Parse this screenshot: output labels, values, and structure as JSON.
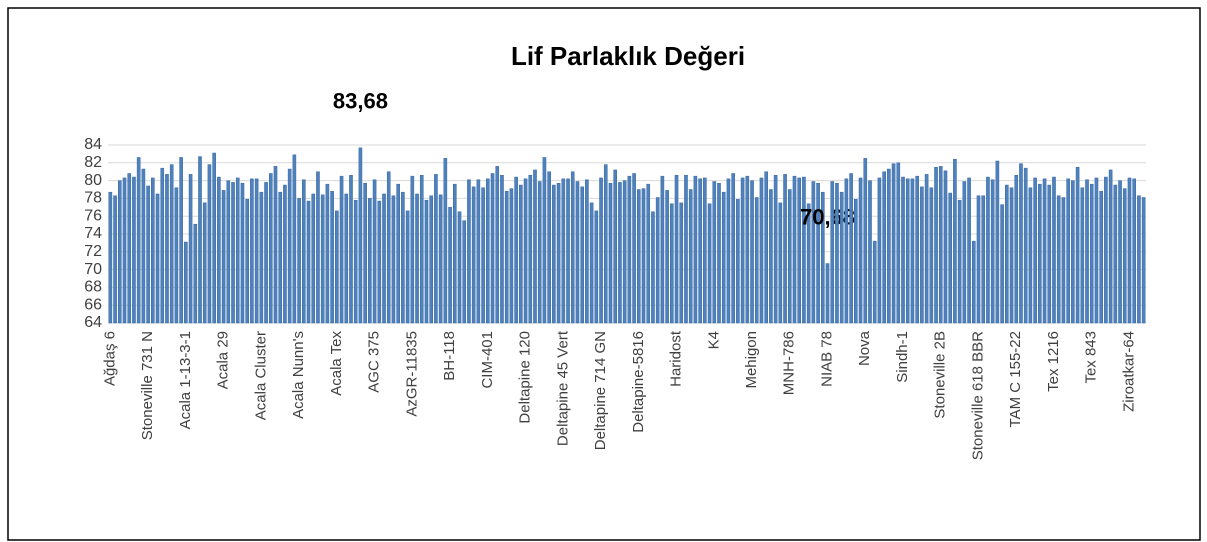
{
  "chart_data": {
    "type": "bar",
    "title": "Lif Parlaklık Değeri",
    "categories": [
      "Ağdaş 6",
      null,
      null,
      null,
      null,
      null,
      null,
      null,
      "Stoneville 731 N",
      null,
      null,
      null,
      null,
      null,
      null,
      null,
      "Acala 1-13-3-1",
      null,
      null,
      null,
      null,
      null,
      null,
      null,
      "Acala 29",
      null,
      null,
      null,
      null,
      null,
      null,
      null,
      "Acala Cluster",
      null,
      null,
      null,
      null,
      null,
      null,
      null,
      "Acala Nunn's",
      null,
      null,
      null,
      null,
      null,
      null,
      null,
      "Acala Tex",
      null,
      null,
      null,
      null,
      null,
      null,
      null,
      "AGC 375",
      null,
      null,
      null,
      null,
      null,
      null,
      null,
      "AzGR-11835",
      null,
      null,
      null,
      null,
      null,
      null,
      null,
      "BH-118",
      null,
      null,
      null,
      null,
      null,
      null,
      null,
      "CIM-401",
      null,
      null,
      null,
      null,
      null,
      null,
      null,
      "Deltapine 120",
      null,
      null,
      null,
      null,
      null,
      null,
      null,
      "Deltapine 45 Vert",
      null,
      null,
      null,
      null,
      null,
      null,
      null,
      "Deltapine 714 GN",
      null,
      null,
      null,
      null,
      null,
      null,
      null,
      "Deltapine-5816",
      null,
      null,
      null,
      null,
      null,
      null,
      null,
      "Haridost",
      null,
      null,
      null,
      null,
      null,
      null,
      null,
      "K4",
      null,
      null,
      null,
      null,
      null,
      null,
      null,
      "Mehigon",
      null,
      null,
      null,
      null,
      null,
      null,
      null,
      "MNH-786",
      null,
      null,
      null,
      null,
      null,
      null,
      null,
      "NIAB 78",
      null,
      null,
      null,
      null,
      null,
      null,
      null,
      "Nova",
      null,
      null,
      null,
      null,
      null,
      null,
      null,
      "Sindh-1",
      null,
      null,
      null,
      null,
      null,
      null,
      null,
      "Stoneville 2B",
      null,
      null,
      null,
      null,
      null,
      null,
      null,
      "Stoneville 618 BBR",
      null,
      null,
      null,
      null,
      null,
      null,
      null,
      "TAM C 155-22",
      null,
      null,
      null,
      null,
      null,
      null,
      null,
      "Tex 1216",
      null,
      null,
      null,
      null,
      null,
      null,
      null,
      "Tex 843",
      null,
      null,
      null,
      null,
      null,
      null,
      null,
      "Ziroatkar-64",
      null,
      null,
      null
    ],
    "values": [
      78.7,
      78.3,
      80.0,
      80.3,
      80.8,
      80.4,
      82.6,
      81.3,
      79.4,
      80.3,
      78.5,
      81.4,
      80.7,
      81.8,
      79.2,
      82.6,
      73.1,
      80.7,
      75.1,
      82.7,
      77.5,
      81.8,
      83.1,
      80.4,
      78.9,
      80.0,
      79.8,
      80.3,
      79.7,
      77.9,
      80.2,
      80.2,
      78.7,
      79.8,
      80.8,
      81.6,
      78.7,
      79.5,
      81.3,
      82.9,
      78.0,
      80.1,
      77.7,
      78.5,
      81.0,
      78.4,
      79.6,
      78.8,
      76.6,
      80.5,
      78.5,
      80.6,
      77.8,
      83.68,
      79.7,
      78.0,
      80.1,
      77.7,
      78.5,
      81.0,
      78.3,
      79.6,
      78.7,
      76.6,
      80.5,
      78.5,
      80.6,
      77.8,
      78.3,
      80.7,
      78.4,
      82.5,
      77.0,
      79.6,
      76.5,
      75.5,
      80.1,
      79.3,
      80.1,
      79.2,
      80.2,
      80.8,
      81.6,
      80.6,
      78.8,
      79.1,
      80.4,
      79.5,
      80.2,
      80.6,
      81.2,
      79.9,
      82.6,
      81.0,
      79.5,
      79.7,
      80.2,
      80.2,
      81.0,
      79.9,
      79.3,
      80.1,
      77.5,
      76.6,
      80.3,
      81.8,
      79.7,
      81.2,
      79.8,
      80.0,
      80.5,
      80.8,
      79.0,
      79.1,
      79.6,
      76.5,
      78.1,
      80.5,
      78.9,
      77.4,
      80.6,
      77.5,
      80.6,
      79.0,
      80.5,
      80.2,
      80.3,
      77.4,
      79.9,
      79.7,
      78.7,
      80.2,
      80.8,
      77.9,
      80.3,
      80.5,
      80.0,
      78.1,
      80.3,
      81.0,
      79.0,
      80.6,
      77.5,
      80.7,
      79.0,
      80.5,
      80.3,
      80.4,
      77.4,
      79.9,
      79.7,
      78.7,
      70.68,
      79.9,
      79.7,
      78.7,
      80.2,
      80.8,
      77.9,
      80.3,
      82.5,
      80.0,
      73.2,
      80.3,
      81.0,
      81.3,
      81.9,
      82.0,
      80.4,
      80.2,
      80.2,
      80.5,
      79.3,
      80.7,
      79.2,
      81.5,
      81.6,
      81.1,
      78.6,
      82.4,
      77.8,
      79.9,
      80.3,
      73.2,
      78.3,
      78.3,
      80.4,
      80.1,
      82.2,
      77.3,
      79.5,
      79.2,
      80.6,
      81.9,
      81.4,
      79.2,
      80.3,
      79.6,
      80.2,
      79.5,
      80.4,
      78.3,
      78.1,
      80.2,
      80.0,
      81.5,
      79.2,
      80.1,
      79.6,
      80.3,
      78.8,
      80.4,
      81.2,
      79.5,
      80.0,
      79.1,
      80.3,
      80.2,
      78.3,
      78.1
    ],
    "value_labels": [
      null,
      null,
      null,
      null,
      null,
      null,
      null,
      null,
      null,
      null,
      null,
      null,
      null,
      null,
      null,
      null,
      null,
      null,
      null,
      null,
      null,
      null,
      null,
      null,
      null,
      null,
      null,
      null,
      null,
      null,
      null,
      null,
      null,
      null,
      null,
      null,
      null,
      null,
      null,
      null,
      null,
      null,
      null,
      null,
      null,
      null,
      null,
      null,
      null,
      null,
      null,
      null,
      null,
      "83,68",
      null,
      null,
      null,
      null,
      null,
      null,
      null,
      null,
      null,
      null,
      null,
      null,
      null,
      null,
      null,
      null,
      null,
      null,
      null,
      null,
      null,
      null,
      null,
      null,
      null,
      null,
      null,
      null,
      null,
      null,
      null,
      null,
      null,
      null,
      null,
      null,
      null,
      null,
      null,
      null,
      null,
      null,
      null,
      null,
      null,
      null,
      null,
      null,
      null,
      null,
      null,
      null,
      null,
      null,
      null,
      null,
      null,
      null,
      null,
      null,
      null,
      null,
      null,
      null,
      null,
      null,
      null,
      null,
      null,
      null,
      null,
      null,
      null,
      null,
      null,
      null,
      null,
      null,
      null,
      null,
      null,
      null,
      null,
      null,
      null,
      null,
      null,
      null,
      null,
      null,
      null,
      null,
      null,
      null,
      null,
      null,
      null,
      null,
      "70,68",
      null,
      null,
      null,
      null,
      null,
      null,
      null,
      null,
      null,
      null,
      null,
      null,
      null,
      null,
      null,
      null,
      null,
      null,
      null,
      null,
      null,
      null,
      null,
      null,
      null,
      null,
      null,
      null,
      null,
      null,
      null,
      null,
      null,
      null,
      null,
      null,
      null,
      null,
      null,
      null,
      null,
      null,
      null,
      null,
      null,
      null,
      null,
      null,
      null,
      null,
      null,
      null,
      null,
      null,
      null,
      null,
      null,
      null,
      null,
      null,
      null,
      null,
      null,
      null,
      null,
      null,
      null
    ],
    "color": "#4f81bd",
    "ylim": [
      64,
      84
    ],
    "yticks": [
      64,
      66,
      68,
      70,
      72,
      74,
      76,
      78,
      80,
      82,
      84
    ],
    "grid": true
  }
}
